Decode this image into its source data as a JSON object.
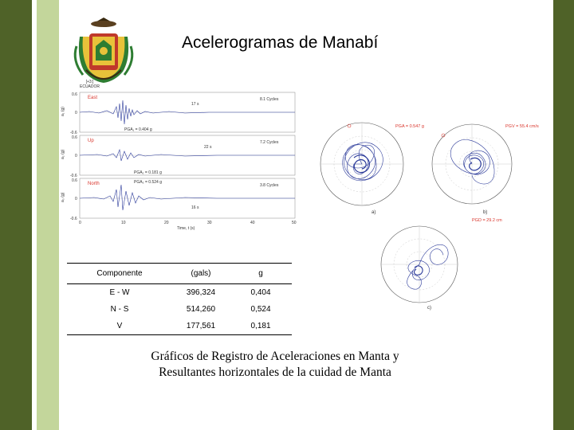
{
  "slide": {
    "title": "Acelerogramas de Manabí",
    "caption_line1": "Gráficos de Registro de Aceleraciones en Manta y",
    "caption_line2": "Resultantes horizontales de la cuidad de Manta"
  },
  "emblem": {
    "caption_line1": "[+3:]",
    "caption_line2": "ECUADOR",
    "colors": {
      "gold": "#e8c23a",
      "red": "#c0392b",
      "green": "#2e7d32",
      "dark": "#3a2a10"
    }
  },
  "accelerograms": {
    "axis_label": "Time, t (s)",
    "x_ticks": [
      "0",
      "10",
      "20",
      "30",
      "40",
      "50"
    ],
    "traces": [
      {
        "component": "East",
        "y_label": "a₁ (g)",
        "y_top": "0.6",
        "y_zero": "0",
        "y_bottom": "-0.6",
        "pga_label": "PGA₁ = 0.404 g",
        "duration": "17 s",
        "cycles": "8.1 Cycles"
      },
      {
        "component": "Up",
        "y_label": "a₂ (g)",
        "y_top": "0.6",
        "y_zero": "0",
        "y_bottom": "-0.6",
        "pga_label": "PGA₂ = 0.181 g",
        "duration": "22 s",
        "cycles": "7.2 Cycles"
      },
      {
        "component": "North",
        "y_label": "a₃ (g)",
        "y_top": "0.6",
        "y_zero": "0",
        "y_bottom": "-0.6",
        "pga_label": "PGA₃ = 0.524 g",
        "duration": "16 s",
        "cycles": "3.8 Cycles"
      }
    ]
  },
  "polar_plots": {
    "a": {
      "tag": "a)",
      "label": "PGA = 0.547 g"
    },
    "b": {
      "tag": "b)",
      "label_top": "PGV = 55.4 cm/s",
      "label_bottom": "PGD = 29.2 cm"
    },
    "c": {
      "tag": "c)"
    }
  },
  "table": {
    "headers": [
      "Componente",
      "(gals)",
      "g"
    ],
    "rows": [
      [
        "E - W",
        "396,324",
        "0,404"
      ],
      [
        "N - S",
        "514,260",
        "0,524"
      ],
      [
        "V",
        "177,561",
        "0,181"
      ]
    ]
  },
  "colors": {
    "sidebar_dark": "#4f6228",
    "sidebar_light": "#c3d69b",
    "trace": "#2b3a9a",
    "component_label": "#d9342b"
  }
}
